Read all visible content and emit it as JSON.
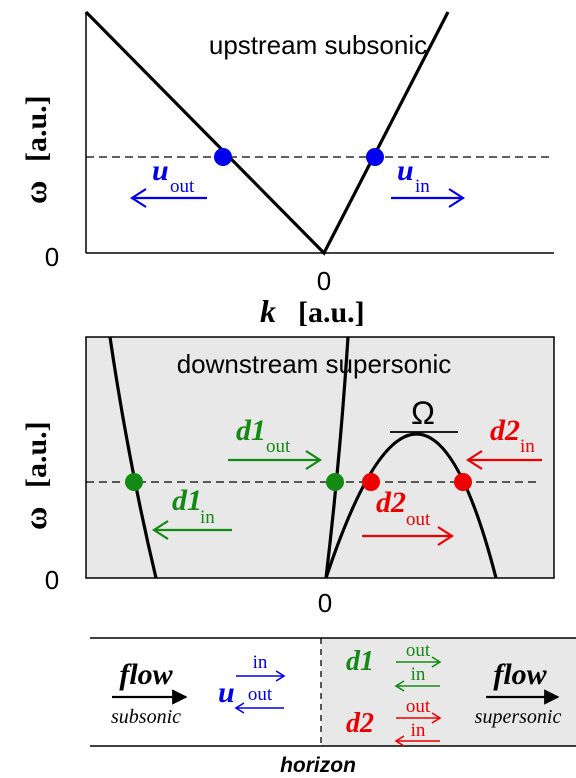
{
  "top_panel": {
    "title": "upstream subsonic",
    "ylabel_symbol": "ω",
    "ylabel_unit": "[a.u.]",
    "ytick_zero": "0",
    "xtick_zero": "0",
    "xlabel_symbol": "k",
    "xlabel_unit": "[a.u.]",
    "mode_left": {
      "base": "u",
      "sub": "out"
    },
    "mode_right": {
      "base": "u",
      "sub": "in"
    }
  },
  "bottom_panel": {
    "title": "downstream supersonic",
    "ylabel_symbol": "ω",
    "ylabel_unit": "[a.u.]",
    "ytick_zero": "0",
    "xtick_zero": "0",
    "omega_label": "Ω",
    "mode_d1_out": {
      "base": "d1",
      "sub": "out"
    },
    "mode_d1_in": {
      "base": "d1",
      "sub": "in"
    },
    "mode_d2_out": {
      "base": "d2",
      "sub": "out"
    },
    "mode_d2_in": {
      "base": "d2",
      "sub": "in"
    }
  },
  "legend": {
    "left_flow": "flow",
    "left_regime": "subsonic",
    "u_label": "u",
    "u_in": "in",
    "u_out": "out",
    "d1_label": "d1",
    "d1_out": "out",
    "d1_in": "in",
    "d2_label": "d2",
    "d2_out": "out",
    "d2_in": "in",
    "right_flow": "flow",
    "right_regime": "supersonic",
    "horizon_label": "horizon"
  },
  "colors": {
    "blue": "#0000ee",
    "green": "#138a13",
    "red": "#ee0000",
    "panel_gray": "#e8e8e8"
  }
}
